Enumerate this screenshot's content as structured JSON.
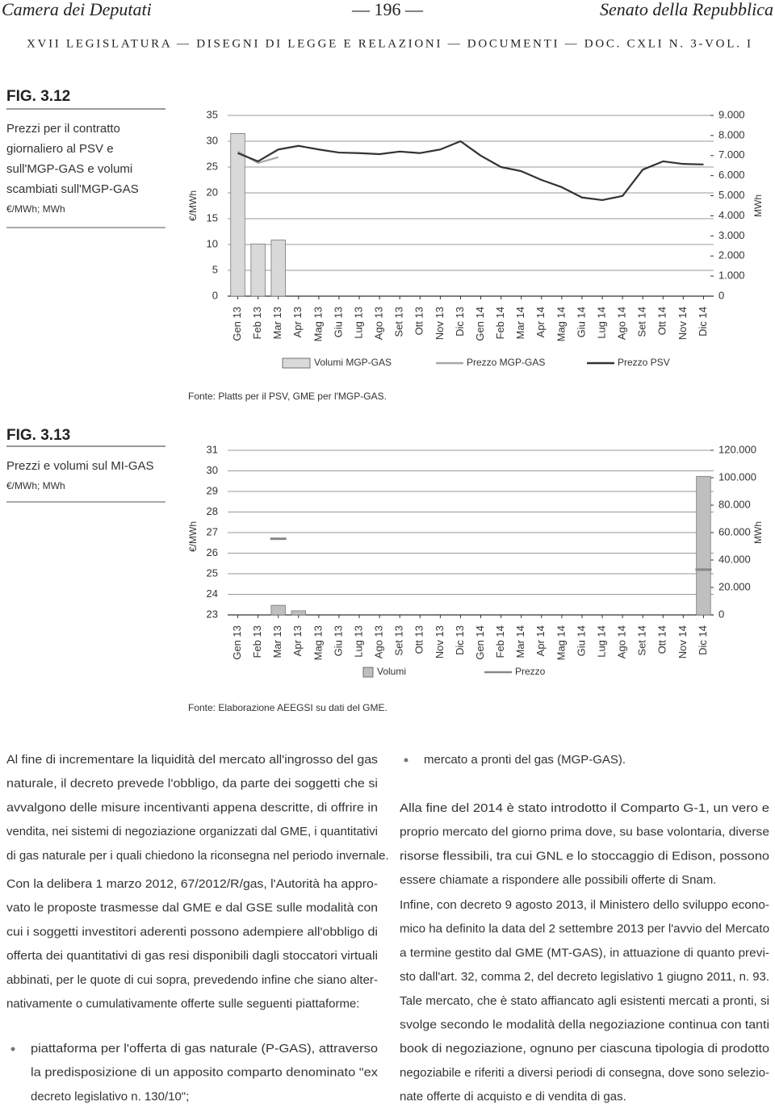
{
  "header": {
    "left": "Camera dei Deputati",
    "center": "— 196 —",
    "right": "Senato della Repubblica",
    "subline": "XVII LEGISLATURA — DISEGNI DI LEGGE E RELAZIONI — DOCUMENTI — DOC. CXLI N. 3-VOL. I"
  },
  "chart_data": [
    {
      "type": "bar",
      "figure": "FIG. 3.12",
      "title": [
        "Prezzi per il contratto",
        "giornaliero al PSV e",
        "sull'MGP-GAS e volumi",
        "scambiati sull'MGP-GAS"
      ],
      "subtitle": "€/MWh; MWh",
      "ylabel": "€/MWh",
      "y2label": "MWh",
      "source": "Fonte: Platts per il PSV, GME per l'MGP-GAS.",
      "categories": [
        "Gen 13",
        "Feb 13",
        "Mar 13",
        "Apr 13",
        "Mag 13",
        "Giu 13",
        "Lug 13",
        "Ago 13",
        "Set 13",
        "Ott 13",
        "Nov 13",
        "Dic 13",
        "Gen 14",
        "Feb 14",
        "Mar 14",
        "Apr 14",
        "Mag 14",
        "Giu 14",
        "Lug 14",
        "Ago 14",
        "Set 14",
        "Ott 14",
        "Nov 14",
        "Dic 14"
      ],
      "ylim": [
        0,
        35
      ],
      "yticks": [
        0,
        5,
        10,
        15,
        20,
        25,
        30,
        35
      ],
      "y2lim": [
        0,
        9000
      ],
      "y2ticks": [
        0,
        {
          "value": 1000,
          "label": "1.000"
        },
        {
          "value": 2000,
          "label": "2.000"
        },
        {
          "value": 3000,
          "label": "3.000"
        },
        {
          "value": 4000,
          "label": "4.000"
        },
        {
          "value": 5000,
          "label": "5.000"
        },
        {
          "value": 6000,
          "label": "6.000"
        },
        {
          "value": 7000,
          "label": "7.000"
        },
        {
          "value": 8000,
          "label": "8.000"
        },
        {
          "value": 9000,
          "label": "9.000"
        }
      ],
      "grid": true,
      "series": [
        {
          "name": "Volumi MGP-GAS",
          "type": "bar",
          "axis": "y2",
          "color": "#d9d9d9",
          "values": [
            8100,
            2600,
            2800,
            null,
            null,
            null,
            null,
            null,
            null,
            null,
            null,
            null,
            null,
            null,
            null,
            null,
            null,
            null,
            null,
            null,
            null,
            null,
            null,
            null
          ]
        },
        {
          "name": "Prezzo MGP-GAS",
          "type": "line",
          "color": "#a8a8a8",
          "values": [
            28.0,
            25.8,
            26.9,
            null,
            null,
            null,
            null,
            null,
            null,
            null,
            null,
            null,
            null,
            null,
            null,
            null,
            null,
            null,
            null,
            null,
            null,
            null,
            null,
            null
          ]
        },
        {
          "name": "Prezzo PSV",
          "type": "line",
          "color": "#333333",
          "values": [
            27.7,
            26.1,
            28.4,
            29.1,
            28.4,
            27.8,
            27.7,
            27.5,
            28.0,
            27.7,
            28.4,
            30.0,
            27.2,
            25.0,
            24.2,
            22.5,
            21.1,
            19.1,
            18.6,
            19.4,
            24.5,
            26.1,
            25.6,
            25.5
          ]
        }
      ]
    },
    {
      "type": "bar",
      "figure": "FIG. 3.13",
      "title": [
        "Prezzi e volumi sul MI-GAS"
      ],
      "subtitle": "€/MWh; MWh",
      "ylabel": "€/MWh",
      "y2label": "MWh",
      "source": "Fonte: Elaborazione AEEGSI su dati del GME.",
      "categories": [
        "Gen 13",
        "Feb 13",
        "Mar 13",
        "Apr 13",
        "Mag 13",
        "Giu 13",
        "Lug 13",
        "Ago 13",
        "Set 13",
        "Ott 13",
        "Nov 13",
        "Dic 13",
        "Gen 14",
        "Feb 14",
        "Mar 14",
        "Apr 14",
        "Mag 14",
        "Giu 14",
        "Lug 14",
        "Ago 14",
        "Set 14",
        "Ott 14",
        "Nov 14",
        "Dic 14"
      ],
      "ylim": [
        23,
        31
      ],
      "yticks": [
        23,
        24,
        25,
        26,
        27,
        28,
        29,
        30,
        31
      ],
      "y2lim": [
        0,
        120000
      ],
      "y2ticks": [
        0,
        {
          "value": 20000,
          "label": "20.000"
        },
        {
          "value": 40000,
          "label": "40.000"
        },
        {
          "value": 60000,
          "label": "60.000"
        },
        {
          "value": 80000,
          "label": "80.000"
        },
        {
          "value": 100000,
          "label": "100.000"
        },
        {
          "value": 120000,
          "label": "120.000"
        }
      ],
      "grid": true,
      "series": [
        {
          "name": "Volumi",
          "type": "bar",
          "axis": "y2",
          "color": "#bfbfbf",
          "values": [
            null,
            null,
            7000,
            3000,
            null,
            null,
            null,
            null,
            null,
            null,
            null,
            null,
            null,
            null,
            null,
            null,
            null,
            null,
            null,
            null,
            null,
            null,
            null,
            101000
          ]
        },
        {
          "name": "Prezzo",
          "type": "line",
          "color": "#888888",
          "values": [
            null,
            null,
            26.7,
            null,
            null,
            null,
            null,
            null,
            null,
            null,
            null,
            null,
            null,
            null,
            null,
            null,
            null,
            null,
            null,
            null,
            null,
            null,
            null,
            25.2
          ]
        }
      ]
    }
  ],
  "body": {
    "left": [
      {
        "kind": "paragraph",
        "lines": [
          "Al fine di incrementare la liquidità del mercato all'ingrosso del gas",
          "naturale, il decreto prevede l'obbligo, da parte dei soggetti che si",
          "avvalgono delle misure incentivanti appena descritte, di offrire in",
          "vendita, nei sistemi di negoziazione organizzati dal GME, i quantitativi",
          "di gas naturale per i quali chiedono la riconsegna nel periodo invernale."
        ]
      },
      {
        "kind": "paragraph",
        "lines": [
          "Con la delibera 1 marzo 2012, 67/2012/R/gas, l'Autorità ha appro-",
          "vato le proposte trasmesse dal GME e dal GSE sulle modalità con",
          "cui i soggetti investitori aderenti possono adempiere all'obbligo di",
          "offerta dei quantitativi di gas resi disponibili dagli stoccatori virtuali",
          "abbinati, per le quote di cui sopra, prevedendo infine che siano alter-",
          "nativamente o cumulativamente offerte sulle seguenti piattaforme:"
        ]
      },
      {
        "kind": "bullet",
        "lines": [
          "piattaforma per l'offerta di gas naturale (P-GAS), attraverso",
          "la predisposizione di un apposito comparto denominato \"ex",
          "decreto legislativo n. 130/10\";"
        ]
      }
    ],
    "right": [
      {
        "kind": "bullet",
        "lines": [
          "mercato a pronti del gas (MGP-GAS)."
        ]
      },
      {
        "kind": "paragraph",
        "lines": [
          "Alla fine del 2014 è stato introdotto il Comparto G-1, un vero e",
          "proprio mercato del giorno prima dove, su base volontaria, diverse",
          "risorse flessibili, tra cui GNL e lo stoccaggio di Edison, possono",
          "essere chiamate a rispondere alle possibili offerte di Snam."
        ]
      },
      {
        "kind": "paragraph",
        "lines": [
          "Infine, con decreto 9 agosto 2013, il Ministero dello sviluppo econo-",
          "mico ha definito la data del 2 settembre 2013 per l'avvio del Mercato",
          "a termine gestito dal GME (MT-GAS), in attuazione di quanto previ-",
          "sto dall'art. 32, comma 2, del decreto legislativo 1 giugno 2011, n. 93.",
          "Tale mercato, che è stato affiancato agli esistenti mercati a pronti, si",
          "svolge secondo le modalità della negoziazione continua con tanti",
          "book di negoziazione, ognuno per ciascuna tipologia di prodotto",
          "negoziabile e riferiti a diversi periodi di consegna, dove sono selezio-",
          "nate offerte di acquisto e di vendita di gas."
        ]
      }
    ]
  }
}
